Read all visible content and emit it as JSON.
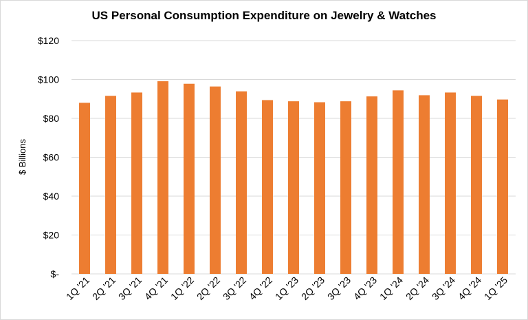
{
  "chart_data": {
    "type": "bar",
    "title": "US Personal Consumption Expenditure on Jewelry & Watches",
    "xlabel": "",
    "ylabel": "$ Billions",
    "categories": [
      "1Q '21",
      "2Q '21",
      "3Q '21",
      "4Q '21",
      "1Q '22",
      "2Q '22",
      "3Q '22",
      "4Q '22",
      "1Q '23",
      "2Q '23",
      "3Q '23",
      "4Q '23",
      "1Q '24",
      "2Q '24",
      "3Q '24",
      "4Q '24",
      "1Q '25"
    ],
    "values": [
      88,
      91.6,
      93.3,
      99.1,
      97.8,
      96.4,
      93.9,
      89.4,
      88.8,
      88.3,
      88.8,
      91.3,
      94.4,
      91.9,
      93.3,
      91.6,
      89.7
    ],
    "ylim": [
      0,
      120
    ],
    "yticks": [
      0,
      20,
      40,
      60,
      80,
      100,
      120
    ],
    "ytick_labels": [
      "$-",
      "$20",
      "$40",
      "$60",
      "$80",
      "$100",
      "$120"
    ],
    "grid": true,
    "legend": "none",
    "colors": {
      "bar": "#ED7D31",
      "grid": "#D9D9D9"
    }
  }
}
